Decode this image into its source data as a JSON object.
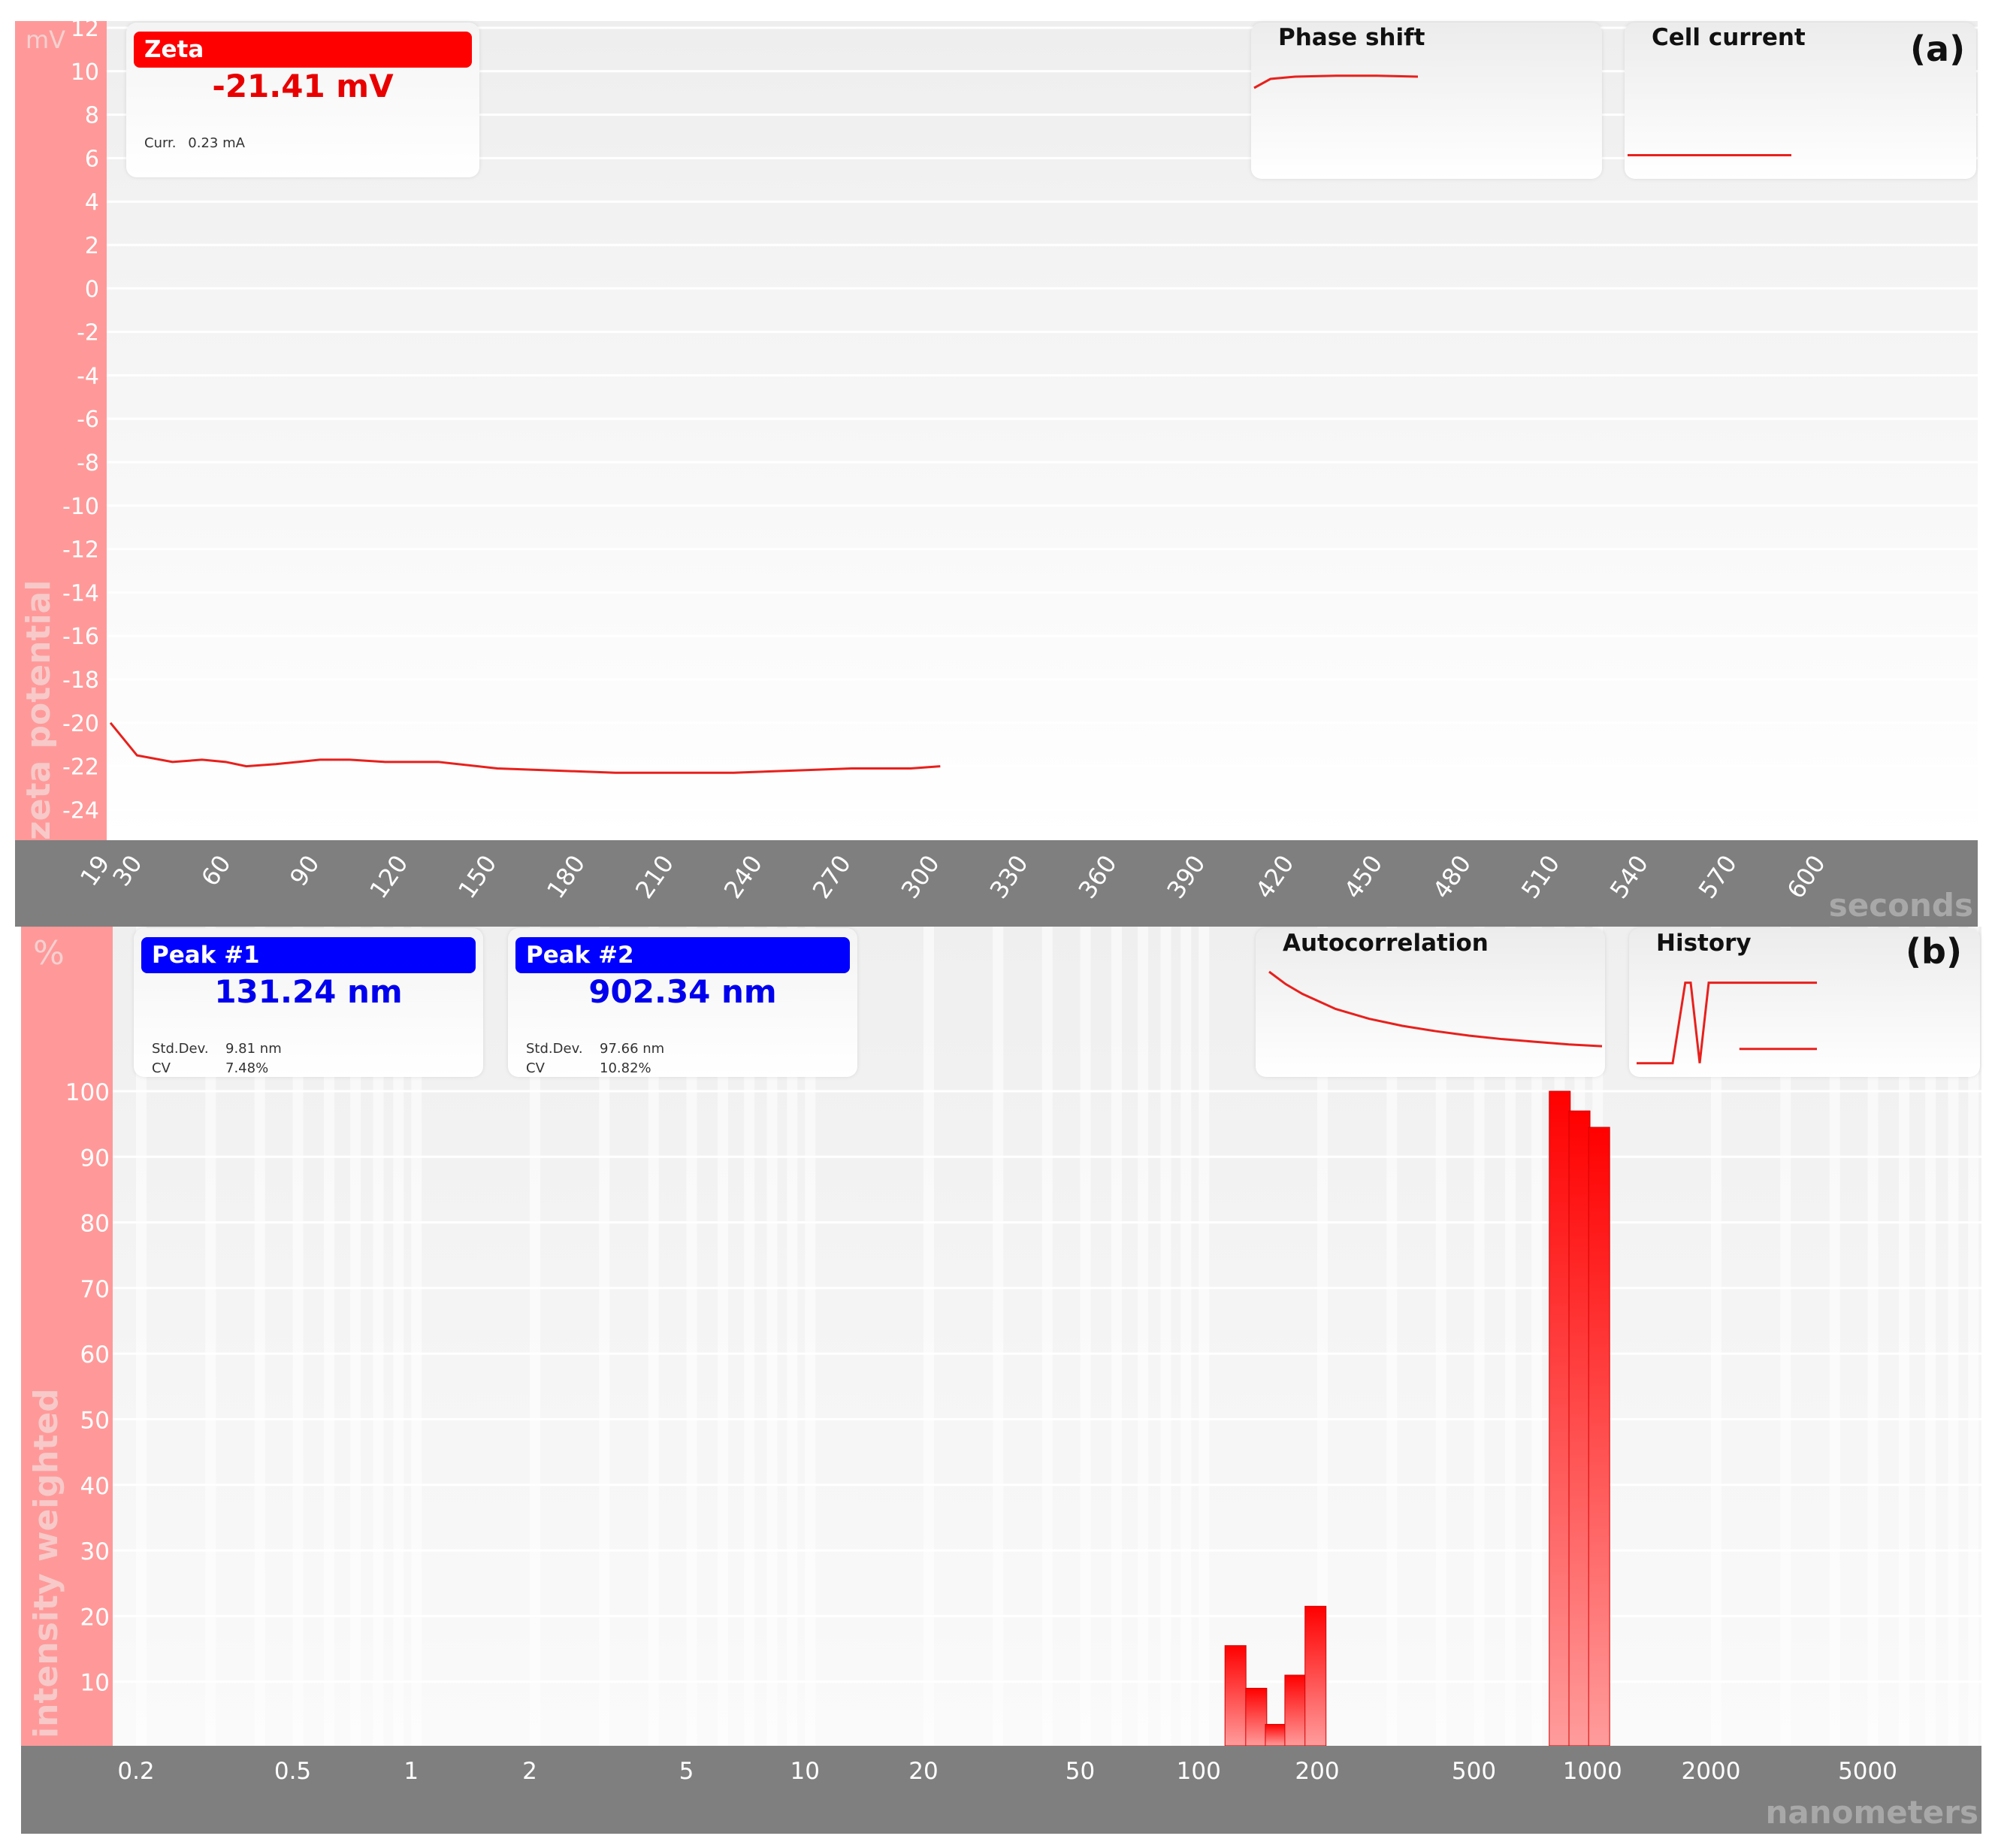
{
  "panel_a": {
    "letter": "(a)",
    "zeta_card": {
      "label": "Zeta",
      "value": "-21.41 mV",
      "current_label": "Curr.",
      "current_value": "0.23 mA"
    },
    "phase_shift_title": "Phase shift",
    "cell_current_title": "Cell current",
    "y_unit": "mV",
    "y_title": "zeta potential",
    "x_unit": "seconds"
  },
  "panel_b": {
    "letter": "(b)",
    "peaks": [
      {
        "label": "Peak #1",
        "value": "131.24 nm",
        "std_label": "Std.Dev.",
        "std_value": "9.81 nm",
        "cv_label": "CV",
        "cv_value": "7.48%"
      },
      {
        "label": "Peak #2",
        "value": "902.34 nm",
        "std_label": "Std.Dev.",
        "std_value": "97.66 nm",
        "cv_label": "CV",
        "cv_value": "10.82%"
      }
    ],
    "autocorrelation_title": "Autocorrelation",
    "history_title": "History",
    "y_unit": "%",
    "y_title": "intensity weighted",
    "x_unit": "nanometers"
  },
  "colors": {
    "accent_red": "#ff0000",
    "series_red": "#e8201c",
    "peak_blue": "#0000ff",
    "axis_strip_pink": "#ff9999",
    "axis_strip_gray": "#7f7f7f"
  },
  "chart_data": [
    {
      "type": "line",
      "ylabel": "zeta potential",
      "xlabel": "seconds",
      "y_unit": "mV",
      "ylim": [
        -25,
        13
      ],
      "xlim": [
        19,
        630
      ],
      "yticks": [
        "12",
        "10",
        "8",
        "6",
        "4",
        "2",
        "0",
        "-2",
        "-4",
        "-6",
        "-8",
        "-10",
        "-12",
        "-14",
        "-16",
        "-18",
        "-20",
        "-22",
        "-24"
      ],
      "xticks": [
        "19",
        "30",
        "60",
        "90",
        "120",
        "150",
        "180",
        "210",
        "240",
        "270",
        "300",
        "330",
        "360",
        "390",
        "420",
        "450",
        "480",
        "510",
        "540",
        "570",
        "600"
      ],
      "grid": true,
      "series": [
        {
          "x": [
            19,
            28,
            40,
            50,
            58,
            65,
            75,
            90,
            100,
            112,
            130,
            150,
            170,
            190,
            210,
            230,
            250,
            270,
            290,
            300
          ],
          "y": [
            -20.0,
            -21.5,
            -21.8,
            -21.7,
            -21.8,
            -22.0,
            -21.9,
            -21.7,
            -21.7,
            -21.8,
            -21.8,
            -22.1,
            -22.2,
            -22.3,
            -22.3,
            -22.3,
            -22.2,
            -22.1,
            -22.1,
            -22.0
          ]
        }
      ]
    },
    {
      "type": "bar",
      "ylabel": "intensity weighted",
      "xlabel": "nanometers",
      "y_unit": "%",
      "ylim": [
        0,
        100
      ],
      "xscale": "log",
      "xlim": [
        0.15,
        10000
      ],
      "yticks": [
        "100",
        "90",
        "80",
        "70",
        "60",
        "50",
        "40",
        "30",
        "20",
        "10"
      ],
      "xticks": [
        "0.2",
        "0.5",
        "1",
        "2",
        "5",
        "10",
        "20",
        "50",
        "100",
        "200",
        "500",
        "1000",
        "2000",
        "5000"
      ],
      "grid": true,
      "bars": [
        {
          "x": 124,
          "y": 15.5
        },
        {
          "x": 140,
          "y": 9
        },
        {
          "x": 157,
          "y": 3.5
        },
        {
          "x": 176,
          "y": 11
        },
        {
          "x": 198,
          "y": 21.5
        },
        {
          "x": 826,
          "y": 100
        },
        {
          "x": 927,
          "y": 97
        },
        {
          "x": 1040,
          "y": 94.5
        }
      ]
    },
    {
      "type": "line",
      "title": "Phase shift",
      "series": [
        {
          "x": [
            0,
            0.1,
            0.25,
            0.5,
            0.75,
            1.0
          ],
          "y": [
            0.55,
            0.75,
            0.8,
            0.82,
            0.82,
            0.8
          ]
        }
      ]
    },
    {
      "type": "line",
      "title": "Cell current",
      "series": [
        {
          "x": [
            0,
            1
          ],
          "y": [
            0.05,
            0.05
          ]
        }
      ]
    },
    {
      "type": "line",
      "title": "Autocorrelation",
      "series": [
        {
          "x": [
            0,
            0.05,
            0.1,
            0.2,
            0.3,
            0.4,
            0.5,
            0.6,
            0.7,
            0.8,
            0.9,
            1.0
          ],
          "y": [
            1.0,
            0.86,
            0.75,
            0.58,
            0.47,
            0.39,
            0.33,
            0.28,
            0.24,
            0.21,
            0.18,
            0.16
          ]
        }
      ]
    },
    {
      "type": "line",
      "title": "History",
      "series": [
        {
          "x": [
            0,
            0.2,
            0.27,
            0.3,
            0.35,
            0.4,
            0.45,
            1.0
          ],
          "y": [
            0.05,
            0.05,
            0.9,
            0.9,
            0.05,
            0.9,
            0.9,
            0.9
          ]
        },
        {
          "x": [
            0.57,
            1.0
          ],
          "y": [
            0.2,
            0.2
          ]
        }
      ]
    }
  ]
}
